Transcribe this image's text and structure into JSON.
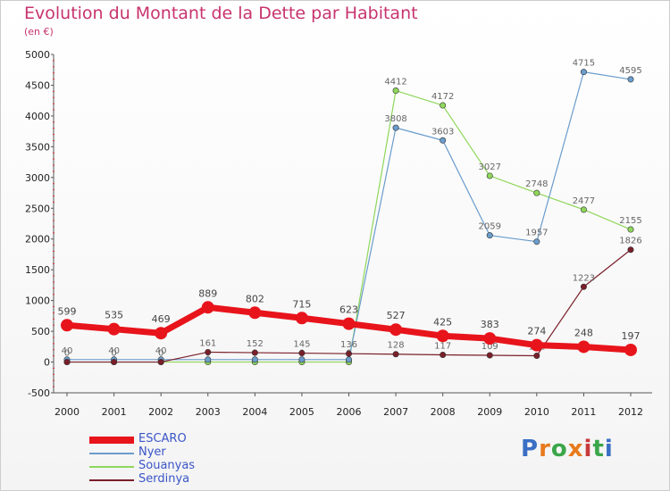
{
  "header": {
    "title": "Evolution du Montant de la Dette par Habitant",
    "subtitle": "(en €)"
  },
  "logo": {
    "text": "Proxiti"
  },
  "colors": {
    "title": "#c8336e",
    "ESCARO": "#e8141b",
    "Nyer": "#6a9ccc",
    "Souanyas": "#8ed75a",
    "Serdinya": "#7a1f2a",
    "legend_text": "#3a55c8",
    "logo": [
      "#3a6fc4",
      "#e87a1d",
      "#3aa64a",
      "#e87a1d",
      "#c83a3a",
      "#3aa64a",
      "#3a6fc4"
    ]
  },
  "chart_data": {
    "type": "line",
    "x": [
      "2000",
      "2001",
      "2002",
      "2003",
      "2004",
      "2005",
      "2006",
      "2007",
      "2008",
      "2009",
      "2010",
      "2011",
      "2012"
    ],
    "ylim": [
      -500,
      5000
    ],
    "yticks": [
      "-500",
      "0",
      "500",
      "1000",
      "1500",
      "2000",
      "2500",
      "3000",
      "3500",
      "4000",
      "4500",
      "5000"
    ],
    "grid": false,
    "legend_position": "bottom-left",
    "series": [
      {
        "name": "ESCARO",
        "values": [
          599,
          535,
          469,
          889,
          802,
          715,
          623,
          527,
          425,
          383,
          274,
          248,
          197
        ],
        "labels": [
          "599",
          "535",
          "469",
          "889",
          "802",
          "715",
          "623",
          "527",
          "425",
          "383",
          "274",
          "248",
          "197"
        ]
      },
      {
        "name": "Nyer",
        "values": [
          40,
          40,
          40,
          40,
          40,
          40,
          40,
          3808,
          3603,
          2059,
          1957,
          4715,
          4595
        ],
        "labels": [
          "40",
          "40",
          "40",
          "",
          "",
          "",
          "",
          "3808",
          "3603",
          "2059",
          "1957",
          "4715",
          "4595"
        ]
      },
      {
        "name": "Souanyas",
        "values": [
          0,
          0,
          0,
          0,
          0,
          0,
          0,
          4412,
          4172,
          3027,
          2748,
          2477,
          2155
        ],
        "labels": [
          "0",
          "0",
          "0",
          "0",
          "0",
          "0",
          "0",
          "4412",
          "4172",
          "3027",
          "2748",
          "2477",
          "2155"
        ]
      },
      {
        "name": "Serdinya",
        "values": [
          0,
          0,
          0,
          161,
          152,
          145,
          136,
          128,
          117,
          109,
          102,
          1223,
          1826
        ],
        "labels": [
          "",
          "",
          "",
          "161",
          "152",
          "145",
          "136",
          "128",
          "117",
          "109",
          "102",
          "1223",
          "1826"
        ]
      }
    ]
  }
}
